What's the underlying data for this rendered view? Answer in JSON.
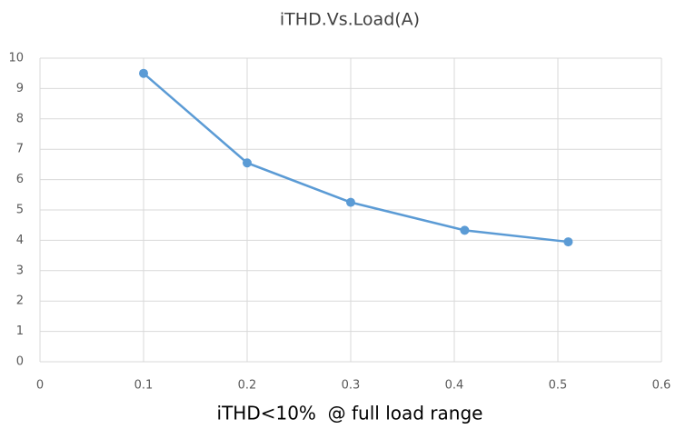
{
  "chart_data": {
    "type": "line",
    "title": "iTHD.Vs.Load(A)",
    "x_label": "iTHD<10%  @ full load range",
    "x": [
      0.1,
      0.2,
      0.3,
      0.41,
      0.51
    ],
    "series": [
      {
        "color": "#5b9bd5",
        "values": [
          9.5,
          6.55,
          5.25,
          4.33,
          3.95
        ]
      }
    ],
    "xlim": [
      0,
      0.6
    ],
    "xticks": [
      0,
      0.1,
      0.2,
      0.3,
      0.4,
      0.5,
      0.6
    ],
    "ylim": [
      0,
      10
    ],
    "yticks": [
      0,
      1,
      2,
      3,
      4,
      5,
      6,
      7,
      8,
      9,
      10
    ],
    "grid": true
  }
}
